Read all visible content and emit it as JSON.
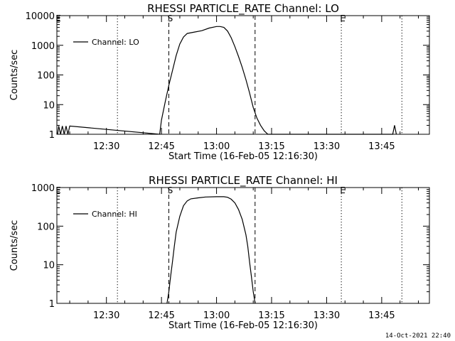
{
  "footer": {
    "timestamp": "14-Oct-2021 22:40"
  },
  "chart_data": [
    {
      "type": "line",
      "title": "RHESSI PARTICLE_RATE Channel: LO",
      "xlabel": "Start Time (16-Feb-05 12:16:30)",
      "ylabel": "Counts/sec",
      "yscale": "log",
      "xlim": [
        "12:16:30",
        "13:58:00"
      ],
      "ylim": [
        1,
        10000
      ],
      "x_ticks": [
        "12:30",
        "12:45",
        "13:00",
        "13:15",
        "13:30",
        "13:45"
      ],
      "y_ticks": [
        "1",
        "10",
        "100",
        "1000",
        "10000"
      ],
      "legend": {
        "position": "top-left",
        "entries": [
          "Channel: LO"
        ]
      },
      "markers": [
        {
          "label": "E",
          "time": "12:16:30",
          "style": "dotted"
        },
        {
          "label": "",
          "time": "12:33:00",
          "style": "dotted"
        },
        {
          "label": "S",
          "time": "12:47:00",
          "style": "dashed"
        },
        {
          "label": "",
          "time": "13:10:30",
          "style": "dashed"
        },
        {
          "label": "E",
          "time": "13:34:00",
          "style": "dotted"
        },
        {
          "label": "",
          "time": "13:50:30",
          "style": "dotted"
        }
      ],
      "series": [
        {
          "name": "Channel: LO",
          "x": [
            "12:16:30",
            "12:17:00",
            "12:17:30",
            "12:18:00",
            "12:18:30",
            "12:19:00",
            "12:19:30",
            "12:20:00",
            "12:44:30",
            "12:45:00",
            "12:46:00",
            "12:47:00",
            "12:48:00",
            "12:49:00",
            "12:50:00",
            "12:51:00",
            "12:52:00",
            "12:54:00",
            "12:56:00",
            "12:58:00",
            "13:00:00",
            "13:01:00",
            "13:02:00",
            "13:03:00",
            "13:04:00",
            "13:05:00",
            "13:06:00",
            "13:07:00",
            "13:08:00",
            "13:09:00",
            "13:10:00",
            "13:11:00",
            "13:12:00",
            "13:13:00",
            "13:14:00",
            "13:48:00",
            "13:48:30",
            "13:49:00"
          ],
          "y": [
            1,
            1.9,
            1,
            1.9,
            1,
            1.9,
            1,
            1.9,
            1,
            3,
            12,
            45,
            140,
            450,
            1100,
            1900,
            2500,
            2800,
            3100,
            3800,
            4300,
            4300,
            4000,
            3000,
            1800,
            900,
            420,
            180,
            70,
            25,
            8,
            3.5,
            2,
            1.3,
            1,
            1,
            2,
            1
          ]
        }
      ]
    },
    {
      "type": "line",
      "title": "RHESSI PARTICLE_RATE Channel: HI",
      "xlabel": "Start Time (16-Feb-05 12:16:30)",
      "ylabel": "Counts/sec",
      "yscale": "log",
      "xlim": [
        "12:16:30",
        "13:58:00"
      ],
      "ylim": [
        1,
        1000
      ],
      "x_ticks": [
        "12:30",
        "12:45",
        "13:00",
        "13:15",
        "13:30",
        "13:45"
      ],
      "y_ticks": [
        "1",
        "10",
        "100",
        "1000"
      ],
      "legend": {
        "position": "top-left",
        "entries": [
          "Channel: HI"
        ]
      },
      "markers": [
        {
          "label": "E",
          "time": "12:16:30",
          "style": "dotted"
        },
        {
          "label": "",
          "time": "12:33:00",
          "style": "dotted"
        },
        {
          "label": "S",
          "time": "12:47:00",
          "style": "dashed"
        },
        {
          "label": "",
          "time": "13:10:30",
          "style": "dashed"
        },
        {
          "label": "E",
          "time": "13:34:00",
          "style": "dotted"
        },
        {
          "label": "",
          "time": "13:50:30",
          "style": "dotted"
        }
      ],
      "series": [
        {
          "name": "Channel: HI",
          "x": [
            "12:46:30",
            "12:47:00",
            "12:47:30",
            "12:48:00",
            "12:48:30",
            "12:49:00",
            "12:50:00",
            "12:51:00",
            "12:52:00",
            "12:53:00",
            "12:55:00",
            "12:57:00",
            "13:00:00",
            "13:02:00",
            "13:03:00",
            "13:04:00",
            "13:05:00",
            "13:06:00",
            "13:07:00",
            "13:08:00",
            "13:08:30",
            "13:09:00",
            "13:09:30",
            "13:10:00",
            "13:10:30"
          ],
          "y": [
            1,
            2,
            5,
            12,
            30,
            70,
            180,
            340,
            450,
            510,
            540,
            570,
            580,
            580,
            560,
            500,
            400,
            270,
            150,
            60,
            30,
            12,
            5,
            2,
            1
          ]
        }
      ]
    }
  ]
}
